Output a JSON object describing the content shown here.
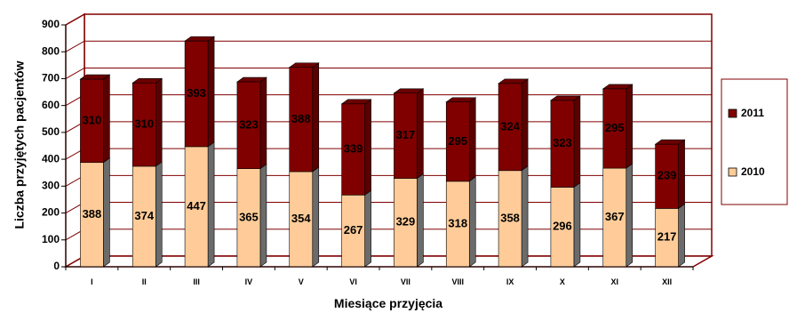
{
  "chart_data": {
    "type": "bar",
    "stacked": true,
    "three_d": true,
    "categories": [
      "I",
      "II",
      "III",
      "IV",
      "V",
      "VI",
      "VII",
      "VIII",
      "IX",
      "X",
      "XI",
      "XII"
    ],
    "series": [
      {
        "name": "2010",
        "color": "#ffcc99",
        "values": [
          388,
          374,
          447,
          365,
          354,
          267,
          329,
          318,
          358,
          296,
          367,
          217
        ]
      },
      {
        "name": "2011",
        "color": "#800000",
        "values": [
          310,
          310,
          393,
          323,
          388,
          339,
          317,
          295,
          324,
          323,
          295,
          239
        ]
      }
    ],
    "xlabel": "Miesiące przyjęcia",
    "ylabel": "Liczba przyjętych pacjentów",
    "ylim": [
      0,
      900
    ],
    "yticks": [
      0,
      100,
      200,
      300,
      400,
      500,
      600,
      700,
      800,
      900
    ],
    "grid": true,
    "legend": {
      "position": "right",
      "order": [
        "2011",
        "2010"
      ]
    },
    "colors": {
      "wall_border": "#800000",
      "gridline": "#800000",
      "bar_side": "#6b6b6b"
    }
  }
}
